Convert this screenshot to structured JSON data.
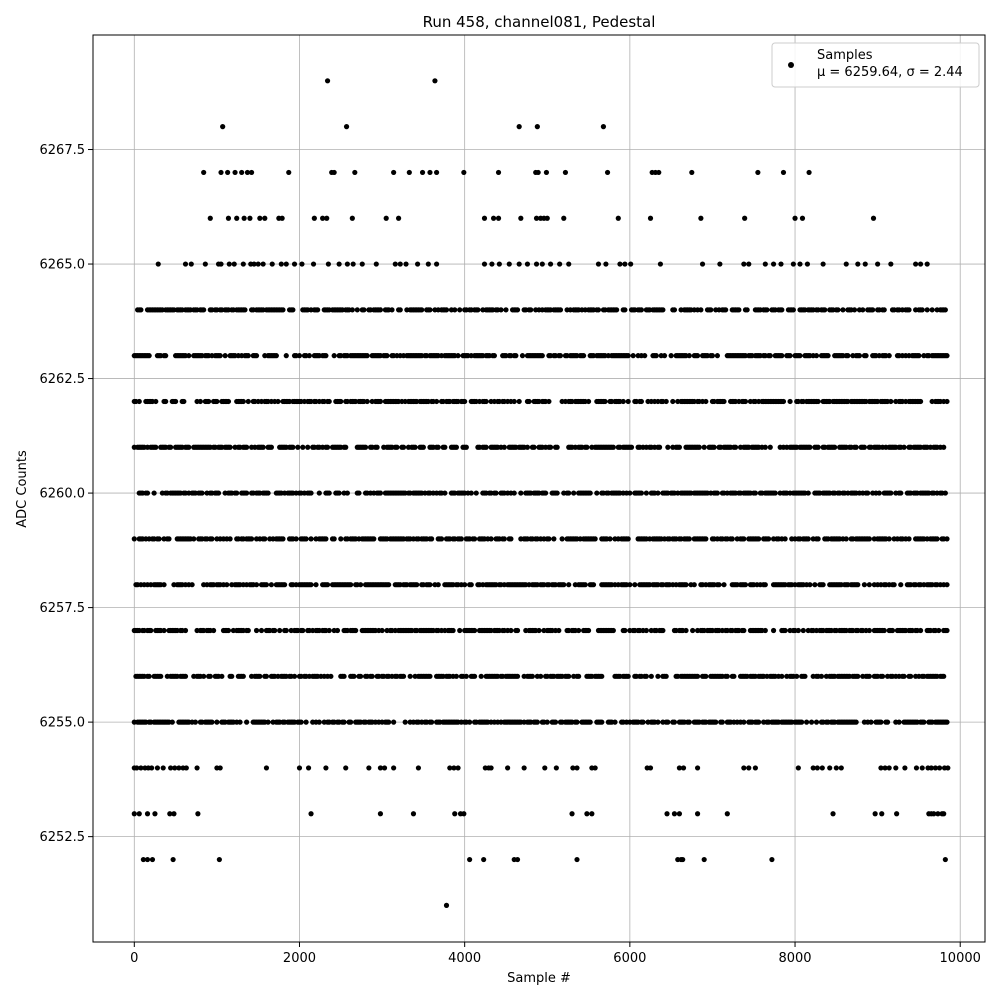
{
  "chart_data": {
    "type": "scatter",
    "title": "Run 458, channel081, Pedestal",
    "xlabel": "Sample #",
    "ylabel": "ADC Counts",
    "xlim": [
      -500,
      10300
    ],
    "ylim": [
      6250.2,
      6270.0
    ],
    "xticks": [
      0,
      2000,
      4000,
      6000,
      8000,
      10000
    ],
    "xtick_labels": [
      "0",
      "2000",
      "4000",
      "6000",
      "8000",
      "10000"
    ],
    "yticks": [
      6252.5,
      6255.0,
      6257.5,
      6260.0,
      6262.5,
      6265.0,
      6267.5
    ],
    "ytick_labels": [
      "6252.5",
      "6255.0",
      "6257.5",
      "6260.0",
      "6262.5",
      "6265.0",
      "6267.5"
    ],
    "grid": true,
    "legend_position": "top-right",
    "legend": {
      "label": "Samples",
      "stats": "μ = 6259.64, σ = 2.44"
    },
    "marker_color": "#000000",
    "x_range": [
      0,
      9850
    ],
    "series": [
      {
        "name": "Samples",
        "levels": [
          {
            "y": 6251,
            "x": [
              3780
            ]
          },
          {
            "y": 6252,
            "x": [
              110,
              160,
              220,
              470,
              1030,
              4060,
              4230,
              4600,
              4640,
              5360,
              6580,
              6620,
              6640,
              6900,
              7720,
              9820
            ]
          },
          {
            "y": 6253,
            "x": [
              0,
              60,
              160,
              250,
              430,
              480,
              770,
              2140,
              2980,
              3380,
              3880,
              3950,
              3990,
              5300,
              5480,
              5540,
              6450,
              6540,
              6600,
              6820,
              7180,
              8460,
              8970,
              9050,
              9230,
              9620,
              9650,
              9680,
              9730,
              9780,
              9800
            ]
          },
          {
            "y": 6254,
            "x": [
              0,
              30,
              80,
              130,
              170,
              210,
              280,
              350,
              440,
              490,
              540,
              590,
              630,
              760,
              1000,
              1040,
              1600,
              2000,
              2110,
              2320,
              2560,
              2840,
              2980,
              3030,
              3140,
              3440,
              3820,
              3870,
              3920,
              4250,
              4290,
              4320,
              4520,
              4720,
              4970,
              5110,
              5310,
              5360,
              5540,
              5580,
              6210,
              6250,
              6600,
              6650,
              6820,
              7380,
              7440,
              7520,
              8040,
              8220,
              8270,
              8330,
              8420,
              8500,
              8560,
              9040,
              9090,
              9140,
              9220,
              9330,
              9470,
              9540,
              9610,
              9650,
              9700,
              9750,
              9810,
              9850
            ]
          },
          {
            "y": 6255,
            "x": "dense"
          },
          {
            "y": 6256,
            "x": "dense"
          },
          {
            "y": 6257,
            "x": "dense"
          },
          {
            "y": 6258,
            "x": "dense"
          },
          {
            "y": 6259,
            "x": "dense"
          },
          {
            "y": 6260,
            "x": "dense"
          },
          {
            "y": 6261,
            "x": "dense"
          },
          {
            "y": 6262,
            "x": "dense"
          },
          {
            "y": 6263,
            "x": "dense"
          },
          {
            "y": 6264,
            "x": "dense"
          },
          {
            "y": 6265,
            "x": [
              290,
              620,
              690,
              860,
              1020,
              1050,
              1150,
              1210,
              1320,
              1410,
              1450,
              1500,
              1560,
              1670,
              1780,
              1840,
              1940,
              2030,
              2170,
              2350,
              2480,
              2580,
              2650,
              2760,
              2930,
              3160,
              3220,
              3290,
              3430,
              3560,
              3660,
              4240,
              4330,
              4420,
              4540,
              4660,
              4760,
              4870,
              4940,
              5040,
              5150,
              5260,
              5620,
              5710,
              5880,
              5940,
              6010,
              6370,
              6880,
              7090,
              7380,
              7440,
              7640,
              7740,
              7830,
              7980,
              8060,
              8150,
              8340,
              8620,
              8760,
              8850,
              9000,
              9160,
              9460,
              9520,
              9600
            ]
          },
          {
            "y": 6266,
            "x": [
              920,
              1140,
              1240,
              1330,
              1400,
              1520,
              1580,
              1750,
              1790,
              2180,
              2280,
              2330,
              2640,
              3050,
              3200,
              4240,
              4350,
              4410,
              4680,
              4870,
              4920,
              4960,
              5000,
              5200,
              5860,
              6250,
              6860,
              7390,
              8000,
              8090,
              8950
            ]
          },
          {
            "y": 6267,
            "x": [
              840,
              1050,
              1130,
              1220,
              1300,
              1370,
              1420,
              1870,
              2390,
              2420,
              2670,
              3140,
              3330,
              3490,
              3580,
              3660,
              3990,
              4410,
              4860,
              4890,
              4990,
              5220,
              5730,
              6270,
              6310,
              6350,
              6750,
              7550,
              7860,
              8170
            ]
          },
          {
            "y": 6268,
            "x": [
              1070,
              2570,
              4660,
              4880,
              5680
            ]
          },
          {
            "y": 6269,
            "x": [
              2340,
              3640
            ]
          }
        ],
        "dense_levels_note": "levels 6255–6264 contain near-continuous samples across 0–9850"
      }
    ]
  }
}
